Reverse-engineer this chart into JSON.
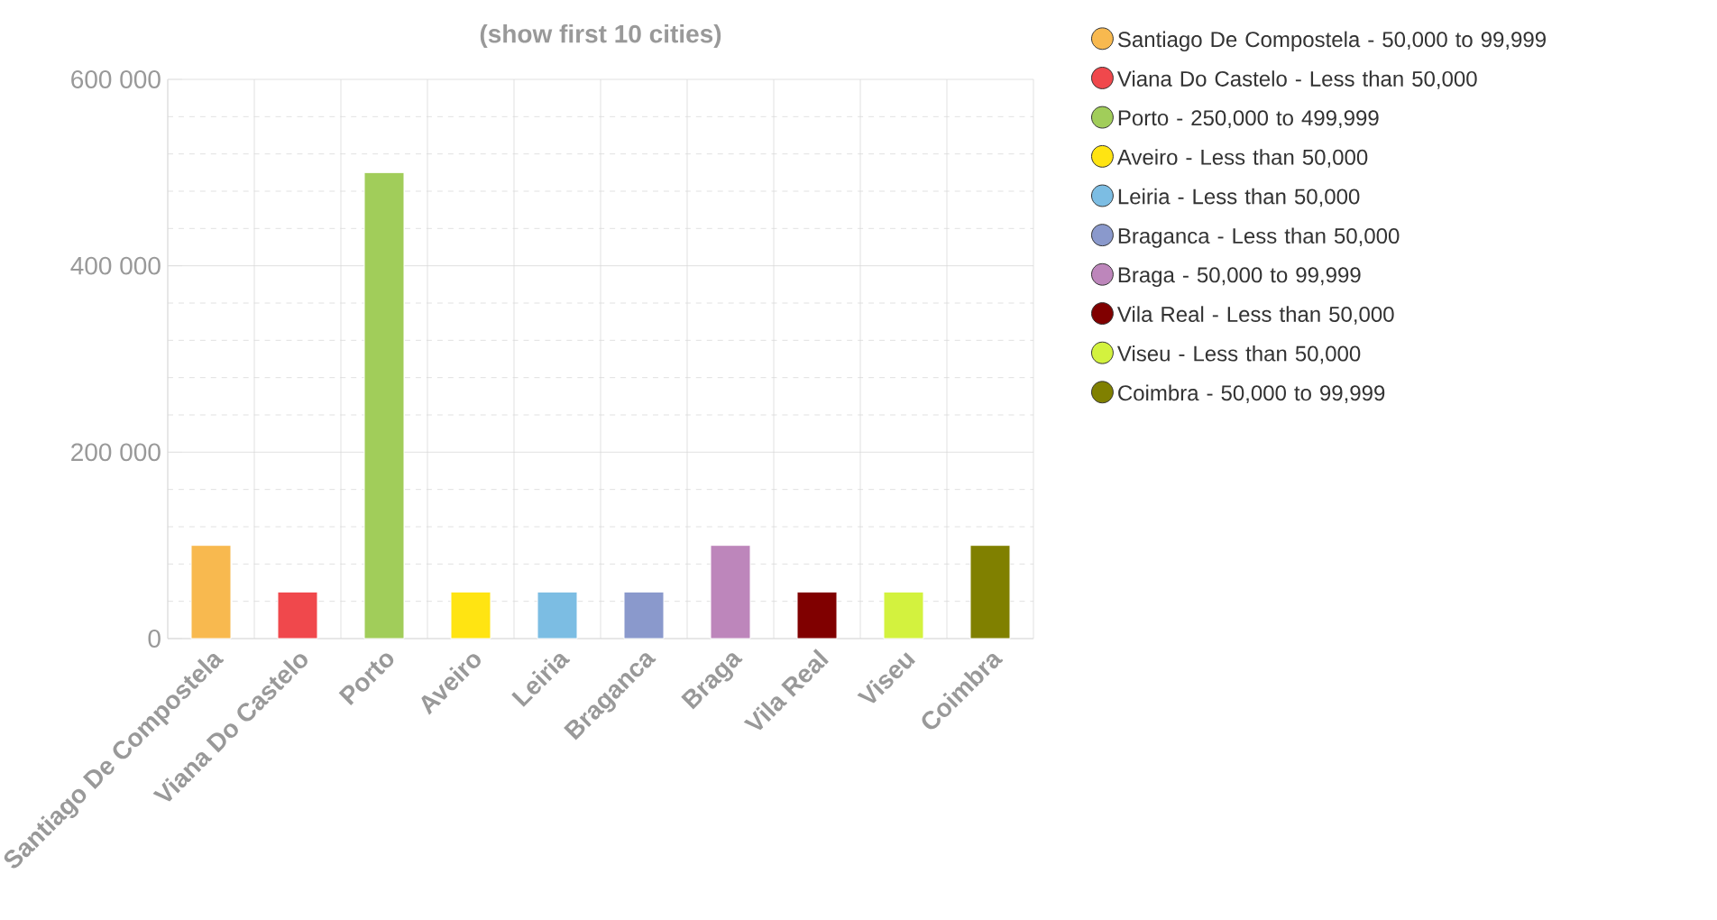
{
  "chart_data": {
    "type": "bar",
    "title": "(show first 10 cities)",
    "categories": [
      "Santiago De Compostela",
      "Viana Do Castelo",
      "Porto",
      "Aveiro",
      "Leiria",
      "Braganca",
      "Braga",
      "Vila Real",
      "Viseu",
      "Coimbra"
    ],
    "series": [
      {
        "name": "Santiago De Compostela - 50,000 to 99,999",
        "color": "#f8b94f",
        "values": [
          100000,
          null,
          null,
          null,
          null,
          null,
          null,
          null,
          null,
          null
        ]
      },
      {
        "name": "Viana Do Castelo - Less than 50,000",
        "color": "#f0484c",
        "values": [
          null,
          50000,
          null,
          null,
          null,
          null,
          null,
          null,
          null,
          null
        ]
      },
      {
        "name": "Porto - 250,000 to 499,999",
        "color": "#a1cd5a",
        "values": [
          null,
          null,
          500000,
          null,
          null,
          null,
          null,
          null,
          null,
          null
        ]
      },
      {
        "name": "Aveiro - Less than 50,000",
        "color": "#ffe412",
        "values": [
          null,
          null,
          null,
          50000,
          null,
          null,
          null,
          null,
          null,
          null
        ]
      },
      {
        "name": "Leiria - Less than 50,000",
        "color": "#7cbde3",
        "values": [
          null,
          null,
          null,
          null,
          50000,
          null,
          null,
          null,
          null,
          null
        ]
      },
      {
        "name": "Braganca - Less than 50,000",
        "color": "#8a99cc",
        "values": [
          null,
          null,
          null,
          null,
          null,
          50000,
          null,
          null,
          null,
          null
        ]
      },
      {
        "name": "Braga - 50,000 to 99,999",
        "color": "#bd86bb",
        "values": [
          null,
          null,
          null,
          null,
          null,
          null,
          100000,
          null,
          null,
          null
        ]
      },
      {
        "name": "Vila Real - Less than 50,000",
        "color": "#800000",
        "values": [
          null,
          null,
          null,
          null,
          null,
          null,
          null,
          50000,
          null,
          null
        ]
      },
      {
        "name": "Viseu - Less than 50,000",
        "color": "#d3f23e",
        "values": [
          null,
          null,
          null,
          null,
          null,
          null,
          null,
          null,
          50000,
          null
        ]
      },
      {
        "name": "Coimbra - 50,000 to 99,999",
        "color": "#808000",
        "values": [
          null,
          null,
          null,
          null,
          null,
          null,
          null,
          null,
          null,
          100000
        ]
      }
    ],
    "ylim": [
      0,
      600000
    ],
    "yticks": [
      {
        "value": 0,
        "label": "0"
      },
      {
        "value": 200000,
        "label": "200 000"
      },
      {
        "value": 400000,
        "label": "400 000"
      },
      {
        "value": 600000,
        "label": "600 000"
      }
    ],
    "grid": true,
    "legend": "right"
  }
}
